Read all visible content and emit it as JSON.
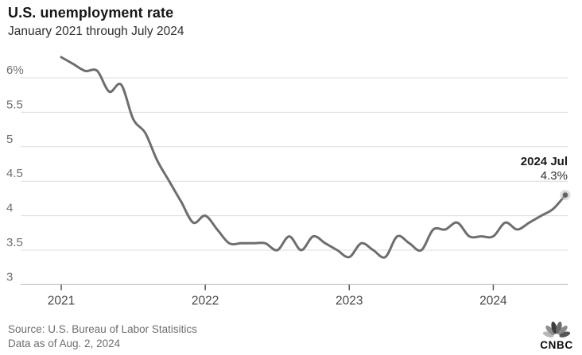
{
  "header": {
    "title": "U.S. unemployment rate",
    "subtitle": "January 2021 through July 2024"
  },
  "annotation": {
    "label": "2024 Jul",
    "value": "4.3%"
  },
  "footer": {
    "source_line1": "Source: U.S. Bureau of Labor Statisitics",
    "source_line2": "Data as of Aug. 2, 2024",
    "logo_text": "CNBC"
  },
  "colors": {
    "line": "#6e6e6e",
    "grid": "#dcdcdc",
    "axis": "#c4c4c4",
    "tick": "#555555",
    "x_label": "#4a4a4a",
    "y_label": "#6f6f6f",
    "dot": "#636363",
    "dot_halo": "#c0c0c0",
    "background": "#ffffff"
  },
  "chart_data": {
    "type": "line",
    "title": "U.S. unemployment rate",
    "subtitle": "January 2021 through July 2024",
    "x_unit": "month",
    "x_start": "2021-01",
    "x_end": "2024-07",
    "grid": "horizontal",
    "legend": "none",
    "ylim": [
      3,
      6.5
    ],
    "y_ticks": [
      {
        "value": 6.0,
        "label": "6%"
      },
      {
        "value": 5.5,
        "label": "5.5"
      },
      {
        "value": 5.0,
        "label": "5"
      },
      {
        "value": 4.5,
        "label": "4.5"
      },
      {
        "value": 4.0,
        "label": "4"
      },
      {
        "value": 3.5,
        "label": "3.5"
      },
      {
        "value": 3.0,
        "label": "3"
      }
    ],
    "x_ticks": [
      {
        "month_index": 0,
        "label": "2021"
      },
      {
        "month_index": 12,
        "label": "2022"
      },
      {
        "month_index": 24,
        "label": "2023"
      },
      {
        "month_index": 36,
        "label": "2024"
      }
    ],
    "series": [
      {
        "name": "U.S. unemployment rate (%)",
        "values": [
          6.3,
          6.2,
          6.1,
          6.1,
          5.8,
          5.9,
          5.4,
          5.2,
          4.8,
          4.5,
          4.2,
          3.9,
          4.0,
          3.8,
          3.6,
          3.6,
          3.6,
          3.6,
          3.5,
          3.7,
          3.5,
          3.7,
          3.6,
          3.5,
          3.4,
          3.6,
          3.5,
          3.4,
          3.7,
          3.6,
          3.5,
          3.8,
          3.8,
          3.9,
          3.7,
          3.7,
          3.7,
          3.9,
          3.8,
          3.9,
          4.0,
          4.1,
          4.3
        ]
      }
    ],
    "end_point": {
      "x_label": "2024 Jul",
      "value": 4.3,
      "marker": "dot"
    }
  }
}
